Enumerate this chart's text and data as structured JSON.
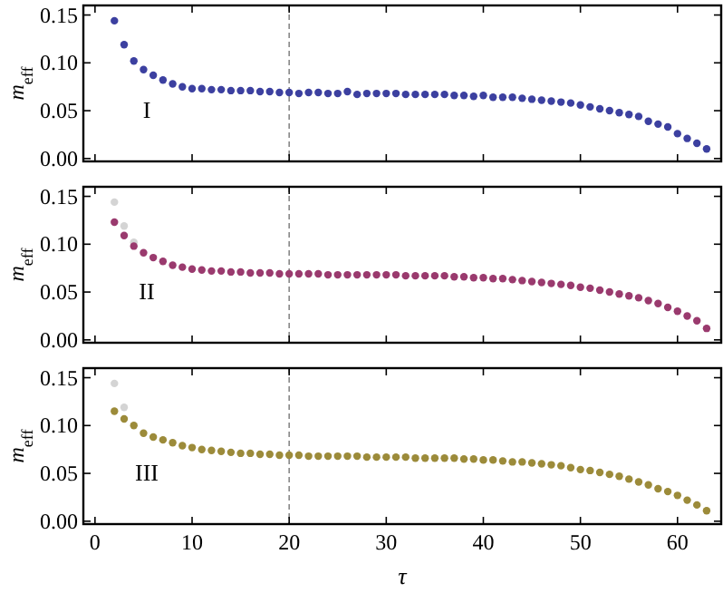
{
  "chart_data": [
    {
      "type": "scatter",
      "ylabel": "m$_{eff}$",
      "xlim": [
        -1.2,
        64.5
      ],
      "xticks": [
        0,
        10,
        20,
        30,
        40,
        50,
        60
      ],
      "ylim": [
        -0.003,
        0.16
      ],
      "yticks": [
        {
          "value": 0,
          "label": "0.00"
        },
        {
          "value": 0.05,
          "label": "0.05"
        },
        {
          "value": 0.1,
          "label": "0.10"
        },
        {
          "value": 0.15,
          "label": "0.15"
        }
      ],
      "tick_labels": "y",
      "marker": "circle",
      "annotations": [
        "I"
      ],
      "ref_lines": [
        {
          "axis": "x",
          "value": 20,
          "color": "#888888",
          "line_style": "dashed"
        }
      ],
      "series": [
        {
          "color": "#3c40a0",
          "x": [
            2,
            3,
            4,
            5,
            6,
            7,
            8,
            9,
            10,
            11,
            12,
            13,
            14,
            15,
            16,
            17,
            18,
            19,
            20,
            21,
            22,
            23,
            24,
            25,
            26,
            27,
            28,
            29,
            30,
            31,
            32,
            33,
            34,
            35,
            36,
            37,
            38,
            39,
            40,
            41,
            42,
            43,
            44,
            45,
            46,
            47,
            48,
            49,
            50,
            51,
            52,
            53,
            54,
            55,
            56,
            57,
            58,
            59,
            60,
            61,
            62,
            63
          ],
          "values": [
            0.144,
            0.119,
            0.102,
            0.093,
            0.087,
            0.082,
            0.078,
            0.075,
            0.073,
            0.073,
            0.072,
            0.072,
            0.071,
            0.071,
            0.071,
            0.07,
            0.07,
            0.069,
            0.069,
            0.068,
            0.069,
            0.069,
            0.068,
            0.068,
            0.07,
            0.067,
            0.068,
            0.068,
            0.068,
            0.068,
            0.067,
            0.067,
            0.067,
            0.067,
            0.067,
            0.066,
            0.066,
            0.065,
            0.066,
            0.064,
            0.064,
            0.064,
            0.063,
            0.062,
            0.061,
            0.06,
            0.059,
            0.058,
            0.056,
            0.054,
            0.052,
            0.05,
            0.048,
            0.046,
            0.044,
            0.039,
            0.036,
            0.033,
            0.026,
            0.021,
            0.016,
            0.01
          ]
        }
      ]
    },
    {
      "type": "scatter",
      "ylabel": "m$_{eff}$",
      "xlim": [
        -1.2,
        64.5
      ],
      "xticks": [
        0,
        10,
        20,
        30,
        40,
        50,
        60
      ],
      "ylim": [
        -0.003,
        0.16
      ],
      "yticks": [
        {
          "value": 0,
          "label": "0.00"
        },
        {
          "value": 0.05,
          "label": "0.05"
        },
        {
          "value": 0.1,
          "label": "0.10"
        },
        {
          "value": 0.15,
          "label": "0.15"
        }
      ],
      "tick_labels": "y",
      "marker": "circle",
      "annotations": [
        "II"
      ],
      "ref_lines": [
        {
          "axis": "x",
          "value": 20,
          "color": "#888888",
          "line_style": "dashed"
        }
      ],
      "series": [
        {
          "color": "#d4d4d4",
          "x": [
            2,
            3,
            4
          ],
          "values": [
            0.144,
            0.119,
            0.102
          ]
        },
        {
          "color": "#9a3a6e",
          "x": [
            2,
            3,
            4,
            5,
            6,
            7,
            8,
            9,
            10,
            11,
            12,
            13,
            14,
            15,
            16,
            17,
            18,
            19,
            20,
            21,
            22,
            23,
            24,
            25,
            26,
            27,
            28,
            29,
            30,
            31,
            32,
            33,
            34,
            35,
            36,
            37,
            38,
            39,
            40,
            41,
            42,
            43,
            44,
            45,
            46,
            47,
            48,
            49,
            50,
            51,
            52,
            53,
            54,
            55,
            56,
            57,
            58,
            59,
            60,
            61,
            62,
            63
          ],
          "values": [
            0.123,
            0.109,
            0.098,
            0.091,
            0.086,
            0.082,
            0.078,
            0.076,
            0.074,
            0.073,
            0.072,
            0.072,
            0.071,
            0.071,
            0.07,
            0.07,
            0.07,
            0.069,
            0.069,
            0.069,
            0.069,
            0.069,
            0.068,
            0.068,
            0.068,
            0.068,
            0.068,
            0.068,
            0.068,
            0.068,
            0.067,
            0.067,
            0.067,
            0.067,
            0.067,
            0.066,
            0.066,
            0.065,
            0.065,
            0.064,
            0.064,
            0.063,
            0.062,
            0.061,
            0.06,
            0.059,
            0.058,
            0.057,
            0.055,
            0.054,
            0.052,
            0.05,
            0.048,
            0.046,
            0.044,
            0.041,
            0.038,
            0.034,
            0.03,
            0.025,
            0.02,
            0.012
          ]
        }
      ]
    },
    {
      "type": "scatter",
      "xlabel": "τ",
      "ylabel": "m$_{eff}$",
      "xlim": [
        -1.2,
        64.5
      ],
      "xticks": [
        0,
        10,
        20,
        30,
        40,
        50,
        60
      ],
      "ylim": [
        -0.003,
        0.16
      ],
      "yticks": [
        {
          "value": 0,
          "label": "0.00"
        },
        {
          "value": 0.05,
          "label": "0.05"
        },
        {
          "value": 0.1,
          "label": "0.10"
        },
        {
          "value": 0.15,
          "label": "0.15"
        }
      ],
      "marker": "circle",
      "annotations": [
        "III"
      ],
      "ref_lines": [
        {
          "axis": "x",
          "value": 20,
          "color": "#888888",
          "line_style": "dashed"
        }
      ],
      "series": [
        {
          "color": "#d4d4d4",
          "x": [
            2,
            3
          ],
          "values": [
            0.144,
            0.119
          ]
        },
        {
          "color": "#9c8b3a",
          "x": [
            2,
            3,
            4,
            5,
            6,
            7,
            8,
            9,
            10,
            11,
            12,
            13,
            14,
            15,
            16,
            17,
            18,
            19,
            20,
            21,
            22,
            23,
            24,
            25,
            26,
            27,
            28,
            29,
            30,
            31,
            32,
            33,
            34,
            35,
            36,
            37,
            38,
            39,
            40,
            41,
            42,
            43,
            44,
            45,
            46,
            47,
            48,
            49,
            50,
            51,
            52,
            53,
            54,
            55,
            56,
            57,
            58,
            59,
            60,
            61,
            62,
            63
          ],
          "values": [
            0.115,
            0.107,
            0.1,
            0.092,
            0.088,
            0.085,
            0.082,
            0.079,
            0.077,
            0.075,
            0.074,
            0.073,
            0.072,
            0.071,
            0.071,
            0.07,
            0.07,
            0.069,
            0.069,
            0.069,
            0.068,
            0.068,
            0.068,
            0.068,
            0.068,
            0.068,
            0.067,
            0.067,
            0.067,
            0.067,
            0.067,
            0.066,
            0.066,
            0.066,
            0.066,
            0.066,
            0.065,
            0.065,
            0.064,
            0.064,
            0.063,
            0.062,
            0.062,
            0.061,
            0.06,
            0.059,
            0.058,
            0.056,
            0.054,
            0.053,
            0.051,
            0.049,
            0.047,
            0.044,
            0.041,
            0.038,
            0.034,
            0.031,
            0.027,
            0.022,
            0.017,
            0.011
          ]
        }
      ]
    }
  ]
}
